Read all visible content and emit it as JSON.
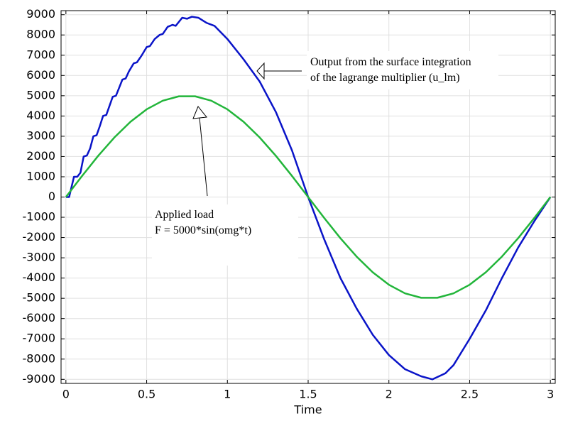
{
  "chart_data": {
    "type": "line",
    "xlabel": "Time",
    "xlim": [
      -0.03,
      3.03
    ],
    "ylim": [
      -9200,
      9200
    ],
    "xticks": [
      0,
      0.5,
      1,
      1.5,
      2,
      2.5,
      3
    ],
    "yticks": [
      -9000,
      -8000,
      -7000,
      -6000,
      -5000,
      -4000,
      -3000,
      -2000,
      -1000,
      0,
      1000,
      2000,
      3000,
      4000,
      5000,
      6000,
      7000,
      8000,
      9000
    ],
    "grid": true,
    "series": [
      {
        "color": "#0a14c8",
        "x": [
          0,
          0.02,
          0.05,
          0.07,
          0.09,
          0.11,
          0.13,
          0.15,
          0.17,
          0.19,
          0.21,
          0.23,
          0.25,
          0.27,
          0.29,
          0.31,
          0.33,
          0.35,
          0.37,
          0.39,
          0.42,
          0.44,
          0.47,
          0.5,
          0.52,
          0.55,
          0.58,
          0.6,
          0.63,
          0.66,
          0.68,
          0.72,
          0.75,
          0.78,
          0.82,
          0.87,
          0.92,
          1.0,
          1.1,
          1.2,
          1.3,
          1.4,
          1.5,
          1.6,
          1.7,
          1.8,
          1.9,
          2.0,
          2.1,
          2.2,
          2.27,
          2.35,
          2.4,
          2.5,
          2.6,
          2.7,
          2.8,
          2.9,
          3.0
        ],
        "values": [
          0,
          0,
          1000,
          1000,
          1200,
          2000,
          2050,
          2400,
          3000,
          3050,
          3500,
          4000,
          4050,
          4500,
          4950,
          5000,
          5400,
          5800,
          5850,
          6200,
          6600,
          6650,
          7000,
          7400,
          7450,
          7800,
          8000,
          8050,
          8400,
          8500,
          8450,
          8850,
          8800,
          8900,
          8850,
          8600,
          8450,
          7800,
          6800,
          5700,
          4200,
          2300,
          0,
          -2100,
          -4000,
          -5500,
          -6800,
          -7800,
          -8500,
          -8850,
          -9000,
          -8700,
          -8300,
          -7000,
          -5600,
          -4000,
          -2500,
          -1200,
          0
        ]
      },
      {
        "color": "#22b53a",
        "x": [
          0,
          0.1,
          0.2,
          0.3,
          0.4,
          0.5,
          0.6,
          0.7,
          0.8,
          0.9,
          1.0,
          1.1,
          1.2,
          1.3,
          1.4,
          1.5,
          1.6,
          1.7,
          1.8,
          1.9,
          2.0,
          2.1,
          2.2,
          2.3,
          2.4,
          2.5,
          2.6,
          2.7,
          2.8,
          2.9,
          3.0
        ],
        "values": [
          0,
          1040,
          2034,
          2939,
          3716,
          4330,
          4755,
          4973,
          4973,
          4755,
          4330,
          3716,
          2939,
          2034,
          1040,
          0,
          -1040,
          -2034,
          -2939,
          -3716,
          -4330,
          -4755,
          -4973,
          -4973,
          -4755,
          -4330,
          -3716,
          -2939,
          -2034,
          -1040,
          0
        ]
      }
    ],
    "annotations": [
      {
        "lines": [
          "Output from the surface integration",
          "of the lagrange multiplier (u_lm)"
        ]
      },
      {
        "lines": [
          "Applied load",
          "F = 5000*sin(omg*t)"
        ]
      }
    ]
  }
}
